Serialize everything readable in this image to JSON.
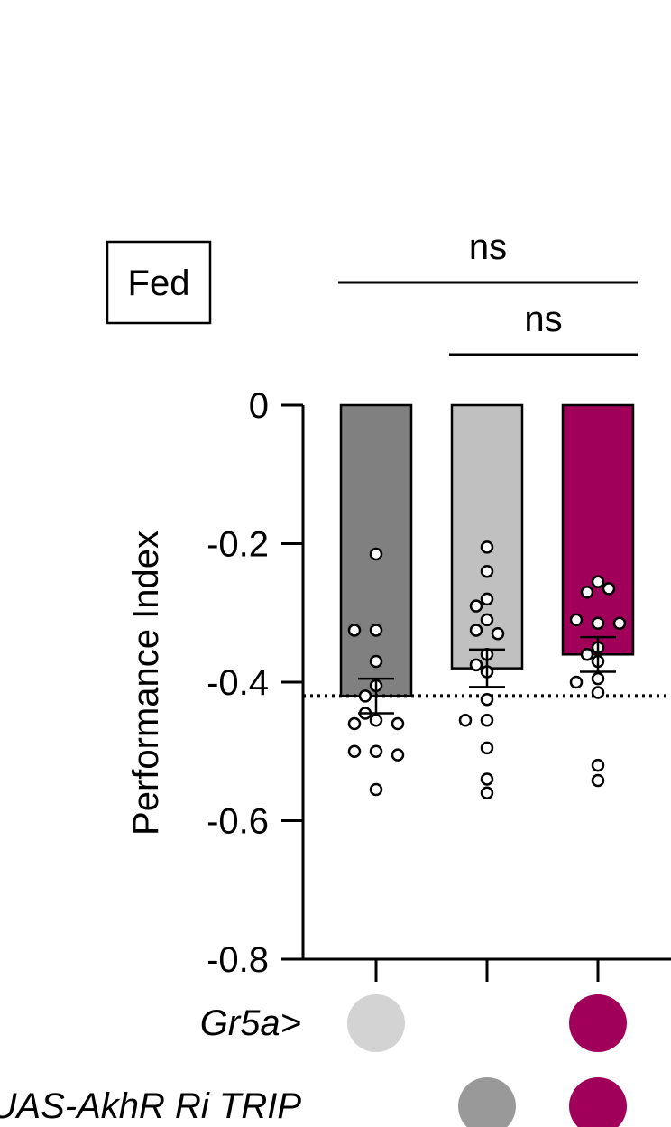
{
  "chart_data": {
    "type": "bar",
    "condition_label": "Fed",
    "ylabel": "Performance Index",
    "ylim": [
      -0.8,
      0
    ],
    "yticks": [
      "0",
      "-0.2",
      "-0.4",
      "-0.6",
      "-0.8"
    ],
    "ytick_values": [
      0,
      -0.2,
      -0.4,
      -0.6,
      -0.8
    ],
    "reference_line": -0.42,
    "bars": [
      {
        "value": -0.42,
        "sem": 0.025,
        "color": "#808080",
        "points": [
          -0.215,
          -0.325,
          -0.325,
          -0.37,
          -0.405,
          -0.42,
          -0.455,
          -0.445,
          -0.46,
          -0.46,
          -0.5,
          -0.5,
          -0.505,
          -0.555
        ]
      },
      {
        "value": -0.38,
        "sem": 0.027,
        "color": "#c0c0c0",
        "points": [
          -0.205,
          -0.24,
          -0.28,
          -0.29,
          -0.31,
          -0.325,
          -0.33,
          -0.36,
          -0.375,
          -0.385,
          -0.425,
          -0.455,
          -0.455,
          -0.495,
          -0.54,
          -0.56
        ]
      },
      {
        "value": -0.36,
        "sem": 0.025,
        "color": "#a0005a",
        "points": [
          -0.255,
          -0.27,
          -0.265,
          -0.315,
          -0.31,
          -0.315,
          -0.35,
          -0.36,
          -0.37,
          -0.395,
          -0.4,
          -0.415,
          -0.52,
          -0.542
        ]
      }
    ],
    "significance": [
      {
        "label": "ns",
        "from": 0,
        "to": 2
      },
      {
        "label": "ns",
        "from": 1,
        "to": 2
      }
    ],
    "genotype_rows": [
      {
        "label": "Gr5a>",
        "dots": [
          {
            "bar": 0,
            "color": "#d3d3d3"
          },
          {
            "bar": 2,
            "color": "#a0005a"
          }
        ]
      },
      {
        "label": "UAS-AkhR Ri TRIP",
        "dots": [
          {
            "bar": 1,
            "color": "#999999"
          },
          {
            "bar": 2,
            "color": "#a0005a"
          }
        ]
      }
    ]
  }
}
